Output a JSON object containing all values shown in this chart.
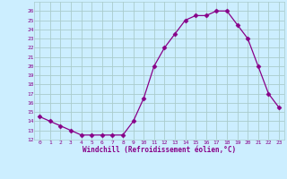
{
  "x": [
    0,
    1,
    2,
    3,
    4,
    5,
    6,
    7,
    8,
    9,
    10,
    11,
    12,
    13,
    14,
    15,
    16,
    17,
    18,
    19,
    20,
    21,
    22,
    23
  ],
  "y": [
    14.5,
    14.0,
    13.5,
    13.0,
    12.5,
    12.5,
    12.5,
    12.5,
    12.5,
    14.0,
    16.5,
    20.0,
    22.0,
    23.5,
    25.0,
    25.5,
    25.5,
    26.0,
    26.0,
    24.5,
    23.0,
    20.0,
    17.0,
    15.5
  ],
  "line_color": "#880088",
  "marker": "D",
  "marker_size": 2.5,
  "bg_color": "#cceeff",
  "grid_color": "#aacccc",
  "xlabel": "Windchill (Refroidissement éolien,°C)",
  "xlabel_color": "#880088",
  "tick_color": "#880088",
  "ylim": [
    12,
    27
  ],
  "xlim": [
    -0.5,
    23.5
  ],
  "yticks": [
    12,
    13,
    14,
    15,
    16,
    17,
    18,
    19,
    20,
    21,
    22,
    23,
    24,
    25,
    26
  ],
  "xticks": [
    0,
    1,
    2,
    3,
    4,
    5,
    6,
    7,
    8,
    9,
    10,
    11,
    12,
    13,
    14,
    15,
    16,
    17,
    18,
    19,
    20,
    21,
    22,
    23
  ]
}
